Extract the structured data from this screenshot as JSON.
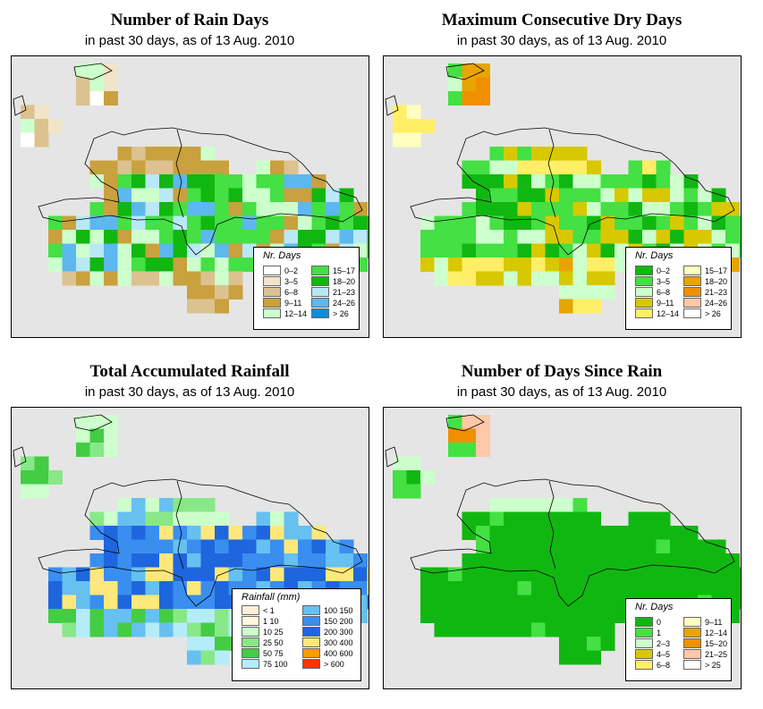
{
  "panels": [
    {
      "title": "Number of Rain Days",
      "subtitle": "in past 30 days, as of  13 Aug. 2010",
      "legend_title": "Nr. Days",
      "legend": [
        {
          "label": "0–2",
          "color": "#ffffff"
        },
        {
          "label": "3–5",
          "color": "#f1e4c8"
        },
        {
          "label": "6–8",
          "color": "#dcc290"
        },
        {
          "label": "9–11",
          "color": "#c9a13e"
        },
        {
          "label": "12–14",
          "color": "#ccffcc"
        },
        {
          "label": "15–17",
          "color": "#44e044"
        },
        {
          "label": "18–20",
          "color": "#11b711"
        },
        {
          "label": "21–23",
          "color": "#b9e8f7"
        },
        {
          "label": "24–26",
          "color": "#5cb8ee"
        },
        {
          "label": "> 26",
          "color": "#0a8ed9"
        }
      ]
    },
    {
      "title": "Maximum Consecutive Dry Days",
      "subtitle": "in past 30 days, as of  13 Aug. 2010",
      "legend_title": "Nr. Days",
      "legend": [
        {
          "label": "0–2",
          "color": "#11b711"
        },
        {
          "label": "3–5",
          "color": "#44e044"
        },
        {
          "label": "6–8",
          "color": "#ccffcc"
        },
        {
          "label": "9–11",
          "color": "#d8c800"
        },
        {
          "label": "12–14",
          "color": "#ffee66"
        },
        {
          "label": "15–17",
          "color": "#ffffc0"
        },
        {
          "label": "18–20",
          "color": "#e8a400"
        },
        {
          "label": "21–23",
          "color": "#f09000"
        },
        {
          "label": "24–26",
          "color": "#ffc8a8"
        },
        {
          "label": "> 26",
          "color": "#ffffff"
        }
      ]
    },
    {
      "title": "Total Accumulated Rainfall",
      "subtitle": "in past 30 days, as of  13 Aug. 2010",
      "legend_title": "Rainfall (mm)",
      "legend": [
        {
          "label": "< 1",
          "color": "#fff0d8"
        },
        {
          "label": "1   10",
          "color": "#fff8e0"
        },
        {
          "label": "10   25",
          "color": "#ccffcc"
        },
        {
          "label": "25   50",
          "color": "#88e888"
        },
        {
          "label": "50   75",
          "color": "#44cc44"
        },
        {
          "label": "75   100",
          "color": "#b4ecfa"
        },
        {
          "label": "100   150",
          "color": "#66c0f0"
        },
        {
          "label": "150   200",
          "color": "#3a8ef0"
        },
        {
          "label": "200   300",
          "color": "#1e66dd"
        },
        {
          "label": "300   400",
          "color": "#ffe87a"
        },
        {
          "label": "400   600",
          "color": "#ff9a00"
        },
        {
          "label": "> 600",
          "color": "#ff3300"
        }
      ]
    },
    {
      "title": "Number of Days Since Rain",
      "subtitle": "in past 30 days, as of  13 Aug. 2010",
      "legend_title": "Nr. Days",
      "legend": [
        {
          "label": "0",
          "color": "#11b711"
        },
        {
          "label": "1",
          "color": "#44e044"
        },
        {
          "label": "2–3",
          "color": "#ccffcc"
        },
        {
          "label": "4–5",
          "color": "#d8c800"
        },
        {
          "label": "6–8",
          "color": "#ffee66"
        },
        {
          "label": "9–11",
          "color": "#ffffc0"
        },
        {
          "label": "12–14",
          "color": "#e8a400"
        },
        {
          "label": "15–20",
          "color": "#f09000"
        },
        {
          "label": "21–25",
          "color": "#ffc8a8"
        },
        {
          "label": "> 25",
          "color": "#ffffff"
        }
      ]
    }
  ]
}
